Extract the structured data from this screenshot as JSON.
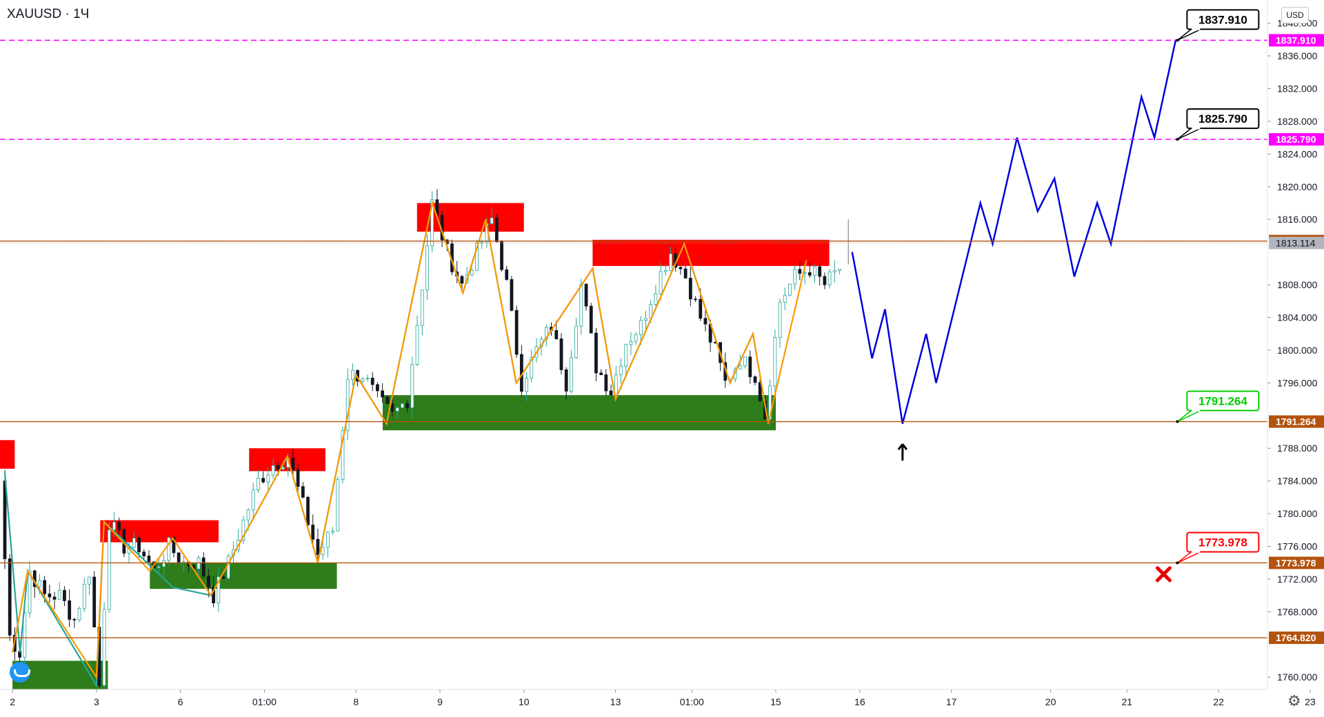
{
  "header": {
    "symbol": "XAUUSD",
    "interval": "1Ч",
    "currency": "USD"
  },
  "colors": {
    "up": "#26a69a",
    "down": "#131722",
    "orange": "#ff9800",
    "teal": "#26a69a",
    "magenta": "#ff00ff",
    "level": "#b3530e",
    "supply": "#ff0000",
    "demand": "#2e7d1a",
    "projection": "#0000dd",
    "green_label": "#00e600",
    "red_label": "#ff0000"
  },
  "chart_data": {
    "type": "candlestick",
    "ylim": [
      1758.5,
      1842.5
    ],
    "y_ticks": [
      1840,
      1836,
      1832,
      1828,
      1824,
      1820,
      1816,
      1808,
      1804,
      1800,
      1796,
      1788,
      1784,
      1780,
      1776,
      1772,
      1768,
      1760
    ],
    "x_ticks": [
      {
        "label": "2",
        "x": 1
      },
      {
        "label": "3",
        "x": 12
      },
      {
        "label": "6",
        "x": 23
      },
      {
        "label": "01:00",
        "x": 34
      },
      {
        "label": "8",
        "x": 46
      },
      {
        "label": "9",
        "x": 57
      },
      {
        "label": "10",
        "x": 68
      },
      {
        "label": "13",
        "x": 80
      },
      {
        "label": "01:00",
        "x": 90
      },
      {
        "label": "15",
        "x": 101
      },
      {
        "label": "16",
        "x": 112
      },
      {
        "label": "17",
        "x": 124
      },
      {
        "label": "20",
        "x": 137
      },
      {
        "label": "21",
        "x": 147
      },
      {
        "label": "22",
        "x": 159
      },
      {
        "label": "23",
        "x": 171
      }
    ],
    "price_path": [
      [
        0,
        1784
      ],
      [
        1,
        1765
      ],
      [
        2,
        1763
      ],
      [
        3,
        1773
      ],
      [
        5,
        1770
      ],
      [
        7,
        1770
      ],
      [
        9,
        1767
      ],
      [
        11,
        1773
      ],
      [
        12,
        1759
      ],
      [
        13,
        1779
      ],
      [
        15,
        1776
      ],
      [
        17,
        1776
      ],
      [
        19,
        1773
      ],
      [
        21,
        1776
      ],
      [
        23,
        1774
      ],
      [
        25,
        1774
      ],
      [
        27,
        1770
      ],
      [
        29,
        1774
      ],
      [
        31,
        1779
      ],
      [
        33,
        1784
      ],
      [
        35,
        1786
      ],
      [
        37,
        1787
      ],
      [
        39,
        1781
      ],
      [
        41,
        1775
      ],
      [
        43,
        1778
      ],
      [
        45,
        1797
      ],
      [
        47,
        1797
      ],
      [
        49,
        1794
      ],
      [
        51,
        1792
      ],
      [
        53,
        1794
      ],
      [
        55,
        1808
      ],
      [
        56,
        1818
      ],
      [
        58,
        1812
      ],
      [
        60,
        1808
      ],
      [
        62,
        1812
      ],
      [
        64,
        1816
      ],
      [
        66,
        1808
      ],
      [
        68,
        1796
      ],
      [
        70,
        1800
      ],
      [
        72,
        1803
      ],
      [
        74,
        1796
      ],
      [
        76,
        1808
      ],
      [
        78,
        1798
      ],
      [
        80,
        1795
      ],
      [
        82,
        1801
      ],
      [
        84,
        1803
      ],
      [
        86,
        1808
      ],
      [
        88,
        1812
      ],
      [
        90,
        1809
      ],
      [
        92,
        1804
      ],
      [
        94,
        1800
      ],
      [
        95,
        1796
      ],
      [
        97,
        1799
      ],
      [
        99,
        1797
      ],
      [
        100,
        1792
      ],
      [
        102,
        1806
      ],
      [
        104,
        1809
      ],
      [
        106,
        1810
      ],
      [
        108,
        1808
      ],
      [
        110,
        1810
      ]
    ],
    "zigzag_orange": [
      [
        1,
        1763
      ],
      [
        3,
        1773
      ],
      [
        12,
        1760
      ],
      [
        13,
        1779
      ],
      [
        19,
        1773
      ],
      [
        22,
        1777
      ],
      [
        27,
        1770
      ],
      [
        37,
        1787
      ],
      [
        41,
        1774
      ],
      [
        46,
        1797
      ],
      [
        50,
        1791
      ],
      [
        56,
        1818
      ],
      [
        60,
        1807
      ],
      [
        63,
        1816
      ],
      [
        67,
        1796
      ],
      [
        77,
        1810
      ],
      [
        80,
        1794
      ],
      [
        89,
        1813
      ],
      [
        95,
        1796
      ],
      [
        98,
        1802
      ],
      [
        100,
        1791
      ],
      [
        105,
        1811
      ]
    ],
    "zigzag_teal": [
      [
        0,
        1785
      ],
      [
        2,
        1763
      ],
      [
        3,
        1773
      ],
      [
        12,
        1759
      ],
      [
        13,
        1779
      ],
      [
        22,
        1771
      ],
      [
        27,
        1770
      ],
      [
        37,
        1787
      ],
      [
        41,
        1774
      ],
      [
        46,
        1797
      ],
      [
        50,
        1791
      ],
      [
        56,
        1818
      ],
      [
        60,
        1807
      ],
      [
        63,
        1816
      ],
      [
        67,
        1796
      ],
      [
        77,
        1810
      ],
      [
        80,
        1794
      ],
      [
        89,
        1813
      ],
      [
        95,
        1796
      ],
      [
        98,
        1802
      ],
      [
        100,
        1791
      ]
    ],
    "projection": [
      [
        111,
        1812
      ],
      [
        113.6,
        1799
      ],
      [
        115.3,
        1805
      ],
      [
        117.6,
        1791
      ],
      [
        120.7,
        1802
      ],
      [
        122,
        1796
      ],
      [
        127.8,
        1818
      ],
      [
        129.4,
        1813
      ],
      [
        132.6,
        1826
      ],
      [
        135.3,
        1817
      ],
      [
        137.5,
        1821
      ],
      [
        140.1,
        1809
      ],
      [
        143.1,
        1818
      ],
      [
        144.9,
        1813
      ],
      [
        148.9,
        1831
      ],
      [
        150.6,
        1826
      ],
      [
        153.4,
        1838
      ]
    ],
    "levels": [
      {
        "price": 1837.91,
        "label": "1837.910",
        "color": "#ff00ff",
        "style": "dashed"
      },
      {
        "price": 1825.79,
        "label": "1825.790",
        "color": "#ff00ff",
        "style": "dashed"
      },
      {
        "price": 1813.349,
        "label": "1813.349",
        "color": "#b3530e",
        "style": "solid"
      },
      {
        "price": 1791.264,
        "label": "1791.264",
        "color": "#b3530e",
        "style": "solid"
      },
      {
        "price": 1773.978,
        "label": "1773.978",
        "color": "#b3530e",
        "style": "solid"
      },
      {
        "price": 1764.82,
        "label": "1764.820",
        "color": "#b3530e",
        "style": "solid"
      }
    ],
    "last_price": {
      "price": 1813.114,
      "label": "1813.114"
    },
    "zones": [
      {
        "kind": "supply",
        "x0": 54,
        "x1": 68,
        "p0": 1818,
        "p1": 1814.5
      },
      {
        "kind": "supply",
        "x0": 77,
        "x1": 108,
        "p0": 1813.5,
        "p1": 1810.3
      },
      {
        "kind": "supply",
        "x0": 32,
        "x1": 42,
        "p0": 1788,
        "p1": 1785.2
      },
      {
        "kind": "supply",
        "x0": 12.5,
        "x1": 28,
        "p0": 1779.2,
        "p1": 1776.5
      },
      {
        "kind": "supply",
        "x0": -1,
        "x1": 1.3,
        "p0": 1789,
        "p1": 1785.5
      },
      {
        "kind": "demand",
        "x0": 49.5,
        "x1": 101,
        "p0": 1794.5,
        "p1": 1790.2
      },
      {
        "kind": "demand",
        "x0": 19,
        "x1": 43.5,
        "p0": 1774,
        "p1": 1770.8
      },
      {
        "kind": "demand",
        "x0": 1,
        "x1": 13.5,
        "p0": 1762,
        "p1": 1758.5
      }
    ],
    "callouts": [
      {
        "text": "1837.910",
        "price": 1837.91,
        "x": 153.6,
        "color": "#000000"
      },
      {
        "text": "1825.790",
        "price": 1825.79,
        "x": 153.6,
        "color": "#000000"
      },
      {
        "text": "1791.264",
        "price": 1791.264,
        "x": 153.6,
        "color": "#00cc00"
      },
      {
        "text": "1773.978",
        "price": 1773.978,
        "x": 153.6,
        "color": "#ff0000"
      }
    ],
    "markers": [
      {
        "type": "arrow-up",
        "x": 117.6,
        "price": 1787.5
      },
      {
        "type": "x-mark",
        "x": 151.8,
        "price": 1772.6
      }
    ]
  }
}
